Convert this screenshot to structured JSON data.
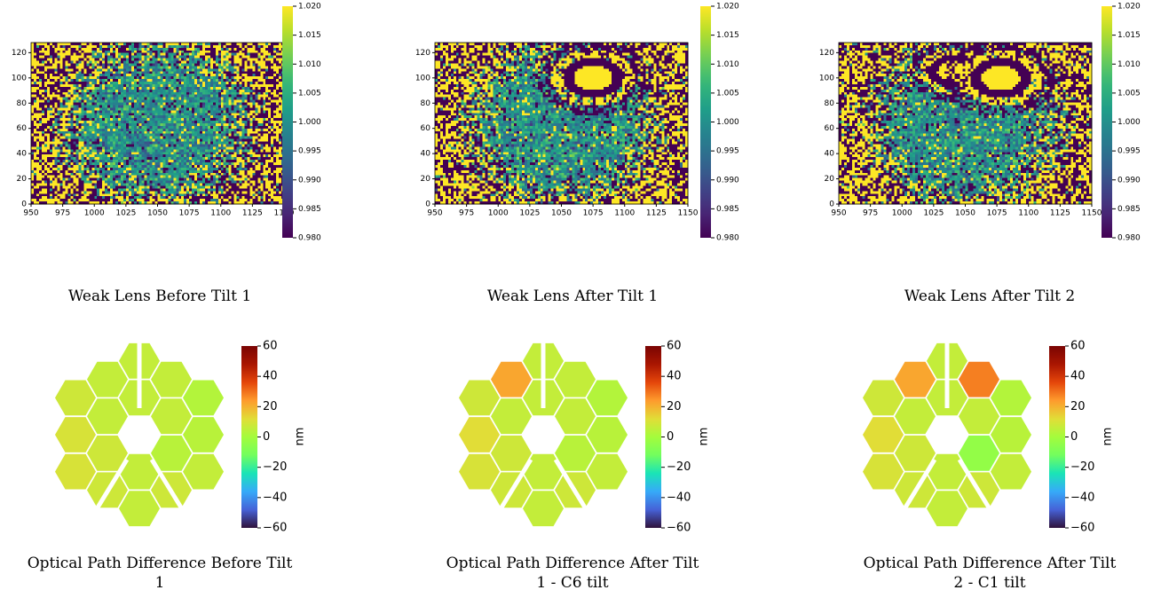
{
  "chart_data": [
    {
      "type": "heatmap",
      "caption": "Weak Lens Before Tilt 1",
      "xlim": [
        950,
        1150
      ],
      "xticks": [
        950,
        975,
        1000,
        1025,
        1050,
        1075,
        1100,
        1125,
        1150
      ],
      "ylim": [
        0,
        128
      ],
      "yticks": [
        0,
        20,
        40,
        60,
        80,
        100,
        120
      ],
      "colormap": "viridis",
      "clim": [
        0.98,
        1.02
      ],
      "cticks": [
        {
          "value": 0.98,
          "label": "0.980"
        },
        0.985,
        {
          "value": 0.99,
          "label": "0.990"
        },
        0.995,
        {
          "value": 1.0,
          "label": "1.000"
        },
        1.005,
        {
          "value": 1.01,
          "label": "1.010"
        },
        1.015,
        {
          "value": 1.02,
          "label": "1.020"
        }
      ]
    },
    {
      "type": "heatmap",
      "caption": "Weak Lens After Tilt 1",
      "xlim": [
        950,
        1150
      ],
      "xticks": [
        950,
        975,
        1000,
        1025,
        1050,
        1075,
        1100,
        1125,
        1150
      ],
      "ylim": [
        0,
        128
      ],
      "yticks": [
        0,
        20,
        40,
        60,
        80,
        100,
        120
      ],
      "colormap": "viridis",
      "clim": [
        0.98,
        1.02
      ],
      "cticks": [
        {
          "value": 0.98,
          "label": "0.980"
        },
        0.985,
        {
          "value": 0.99,
          "label": "0.990"
        },
        0.995,
        {
          "value": 1.0,
          "label": "1.000"
        },
        1.005,
        {
          "value": 1.01,
          "label": "1.010"
        },
        1.015,
        {
          "value": 1.02,
          "label": "1.020"
        }
      ]
    },
    {
      "type": "heatmap",
      "caption": "Weak Lens After Tilt 2",
      "xlim": [
        950,
        1150
      ],
      "xticks": [
        950,
        975,
        1000,
        1025,
        1050,
        1075,
        1100,
        1125,
        1150
      ],
      "ylim": [
        0,
        128
      ],
      "yticks": [
        0,
        20,
        40,
        60,
        80,
        100,
        120
      ],
      "colormap": "viridis",
      "clim": [
        0.98,
        1.02
      ],
      "cticks": [
        {
          "value": 0.98,
          "label": "0.980"
        },
        0.985,
        {
          "value": 0.99,
          "label": "0.990"
        },
        0.995,
        {
          "value": 1.0,
          "label": "1.000"
        },
        1.005,
        {
          "value": 1.01,
          "label": "1.010"
        },
        1.015,
        {
          "value": 1.02,
          "label": "1.020"
        }
      ]
    },
    {
      "type": "hex-map",
      "caption": "Optical Path Difference Before Tilt 1",
      "segment_values": [
        6,
        6,
        4,
        6,
        8,
        6,
        6,
        6,
        3,
        4,
        6,
        8,
        6,
        8,
        10,
        10,
        8,
        6
      ],
      "colormap": "turbo",
      "clim": [
        -60,
        60
      ],
      "colorbar_label": "nm",
      "cticks": [
        {
          "value": -60,
          "label": "−60"
        },
        {
          "value": -40,
          "label": "−40"
        },
        {
          "value": -20,
          "label": "−20"
        },
        0,
        20,
        40,
        60
      ]
    },
    {
      "type": "hex-map",
      "caption": "Optical Path Difference After Tilt 1 - C6 tilt",
      "segment_values": [
        6,
        6,
        4,
        6,
        8,
        6,
        6,
        6,
        3,
        4,
        6,
        8,
        6,
        8,
        10,
        12,
        8,
        22
      ],
      "colormap": "turbo",
      "clim": [
        -60,
        60
      ],
      "colorbar_label": "nm",
      "cticks": [
        {
          "value": -60,
          "label": "−60"
        },
        {
          "value": -40,
          "label": "−40"
        },
        {
          "value": -20,
          "label": "−20"
        },
        0,
        20,
        40,
        60
      ]
    },
    {
      "type": "hex-map",
      "caption": "Optical Path Difference After Tilt 2 - C1 tilt",
      "segment_values": [
        6,
        6,
        -4,
        6,
        8,
        6,
        6,
        28,
        3,
        4,
        6,
        8,
        6,
        8,
        10,
        12,
        8,
        22
      ],
      "colormap": "turbo",
      "clim": [
        -60,
        60
      ],
      "colorbar_label": "nm",
      "cticks": [
        {
          "value": -60,
          "label": "−60"
        },
        {
          "value": -40,
          "label": "−40"
        },
        {
          "value": -20,
          "label": "−20"
        },
        0,
        20,
        40,
        60
      ]
    }
  ]
}
